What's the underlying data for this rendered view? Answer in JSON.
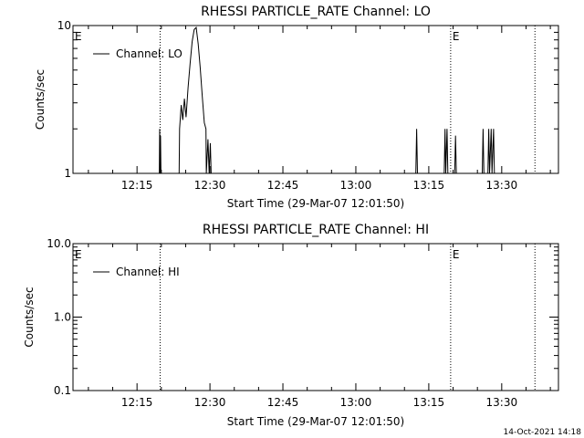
{
  "chart_data": [
    {
      "type": "line",
      "title": "RHESSI PARTICLE_RATE Channel: LO",
      "xlabel": "Start Time (29-Mar-07 12:01:50)",
      "ylabel": "Counts/sec",
      "yscale": "log",
      "ylim": [
        1,
        10
      ],
      "xlim": [
        "12:01:50",
        "13:41:40"
      ],
      "xticks": [
        "12:15",
        "12:30",
        "12:45",
        "13:00",
        "13:15",
        "13:30"
      ],
      "yticks": [
        "1",
        "10"
      ],
      "legend_position": "top-left",
      "grid": false,
      "markers": [
        {
          "label": "E",
          "time": "12:01:50",
          "line": false
        },
        {
          "label": "",
          "time": "12:19:45",
          "line": true
        },
        {
          "label": "E",
          "time": "13:19:30",
          "line": true
        },
        {
          "label": "",
          "time": "13:36:50",
          "line": true
        }
      ],
      "series": [
        {
          "name": "Channel: LO",
          "points": [
            [
              "12:19:35",
              1
            ],
            [
              "12:19:40",
              2
            ],
            [
              "12:19:45",
              1
            ],
            [
              "12:19:50",
              1.8
            ],
            [
              "12:19:55",
              1
            ],
            [
              "12:23:40",
              1
            ],
            [
              "12:23:45",
              2.0
            ],
            [
              "12:24:05",
              2.9
            ],
            [
              "12:24:25",
              2.3
            ],
            [
              "12:24:45",
              3.2
            ],
            [
              "12:25:05",
              2.4
            ],
            [
              "12:25:30",
              3.8
            ],
            [
              "12:25:55",
              5.5
            ],
            [
              "12:26:20",
              7.8
            ],
            [
              "12:26:45",
              9.4
            ],
            [
              "12:27:10",
              9.7
            ],
            [
              "12:27:35",
              7.5
            ],
            [
              "12:28:00",
              5.2
            ],
            [
              "12:28:25",
              3.3
            ],
            [
              "12:28:50",
              2.2
            ],
            [
              "12:29:10",
              2.0
            ],
            [
              "12:29:15",
              1
            ],
            [
              "12:29:35",
              1.7
            ],
            [
              "12:29:50",
              1
            ],
            [
              "12:30:05",
              1.6
            ],
            [
              "12:30:15",
              1
            ],
            [
              "13:12:20",
              1
            ],
            [
              "13:12:30",
              2.0
            ],
            [
              "13:12:40",
              1
            ],
            [
              "13:18:10",
              1
            ],
            [
              "13:18:20",
              2.0
            ],
            [
              "13:18:30",
              1
            ],
            [
              "13:18:45",
              2.0
            ],
            [
              "13:18:55",
              1
            ],
            [
              "13:20:20",
              1
            ],
            [
              "13:20:30",
              1.8
            ],
            [
              "13:20:40",
              1
            ],
            [
              "13:26:00",
              1
            ],
            [
              "13:26:10",
              2.0
            ],
            [
              "13:26:20",
              1
            ],
            [
              "13:27:10",
              1
            ],
            [
              "13:27:20",
              2.0
            ],
            [
              "13:27:30",
              1
            ],
            [
              "13:27:50",
              2.0
            ],
            [
              "13:28:00",
              1
            ],
            [
              "13:28:20",
              2.0
            ],
            [
              "13:28:30",
              1
            ]
          ]
        }
      ]
    },
    {
      "type": "line",
      "title": "RHESSI PARTICLE_RATE Channel: HI",
      "xlabel": "Start Time (29-Mar-07 12:01:50)",
      "ylabel": "Counts/sec",
      "yscale": "log",
      "ylim": [
        0.1,
        10
      ],
      "xlim": [
        "12:01:50",
        "13:41:40"
      ],
      "xticks": [
        "12:15",
        "12:30",
        "12:45",
        "13:00",
        "13:15",
        "13:30"
      ],
      "yticks": [
        "0.1",
        "1.0",
        "10.0"
      ],
      "legend_position": "top-left",
      "grid": false,
      "markers": [
        {
          "label": "E",
          "time": "12:01:50",
          "line": false
        },
        {
          "label": "",
          "time": "12:19:45",
          "line": true
        },
        {
          "label": "E",
          "time": "13:19:30",
          "line": true
        },
        {
          "label": "",
          "time": "13:36:50",
          "line": true
        }
      ],
      "series": [
        {
          "name": "Channel: HI",
          "points": []
        }
      ]
    }
  ],
  "footer": {
    "timestamp": "14-Oct-2021 14:18"
  }
}
